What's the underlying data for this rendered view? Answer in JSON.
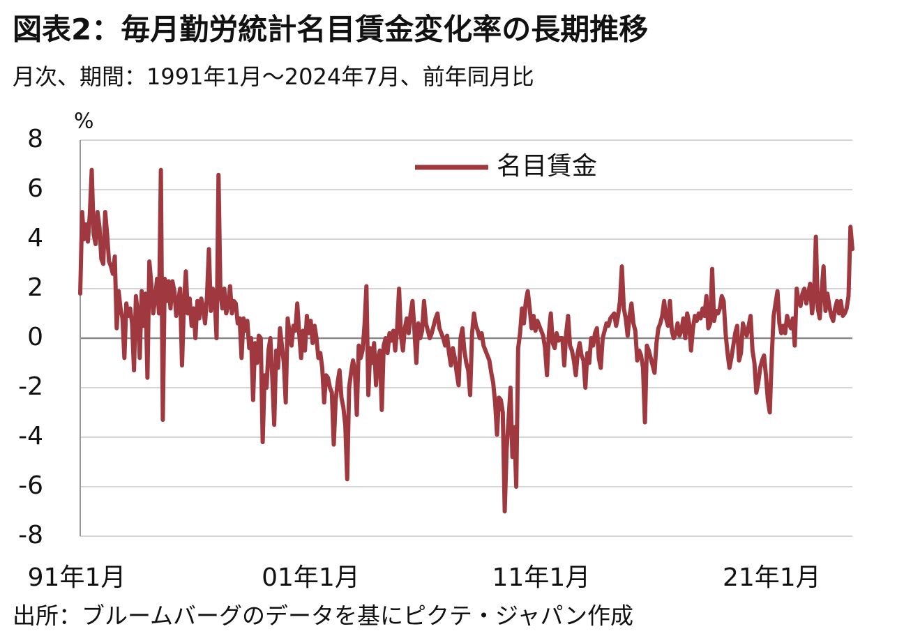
{
  "chart_data": {
    "type": "line",
    "title": "図表2：毎月勤労統計名目賃金変化率の長期推移",
    "subtitle": "月次、期間：1991年1月～2024年7月、前年同月比",
    "y_unit": "%",
    "source": "出所：ブルームバーグのデータを基にピクテ・ジャパン作成",
    "ylim": [
      -8,
      8
    ],
    "yticks": [
      -8,
      -6,
      -4,
      -2,
      0,
      2,
      4,
      6,
      8
    ],
    "grid": true,
    "legend": "upper center",
    "categories": [
      "91年1月",
      null,
      null,
      null,
      null,
      null,
      null,
      null,
      null,
      null,
      null,
      null,
      null,
      null,
      null,
      null,
      null,
      null,
      null,
      null,
      null,
      null,
      null,
      null,
      null,
      null,
      null,
      null,
      null,
      null,
      null,
      null,
      null,
      null,
      null,
      null,
      null,
      null,
      null,
      null,
      null,
      null,
      null,
      null,
      null,
      null,
      null,
      null,
      null,
      null,
      null,
      null,
      null,
      null,
      null,
      null,
      null,
      null,
      null,
      null,
      null,
      null,
      null,
      null,
      null,
      null,
      null,
      null,
      null,
      null,
      null,
      null,
      null,
      null,
      null,
      null,
      null,
      null,
      null,
      null,
      null,
      null,
      null,
      null,
      null,
      null,
      null,
      null,
      null,
      null,
      null,
      null,
      null,
      null,
      null,
      null,
      null,
      null,
      null,
      null,
      null,
      null,
      null,
      null,
      null,
      null,
      null,
      null,
      null,
      null,
      null,
      null,
      null,
      null,
      null,
      null,
      null,
      null,
      null,
      null,
      "01年1月",
      null,
      null,
      null,
      null,
      null,
      null,
      null,
      null,
      null,
      null,
      null,
      null,
      null,
      null,
      null,
      null,
      null,
      null,
      null,
      null,
      null,
      null,
      null,
      null,
      null,
      null,
      null,
      null,
      null,
      null,
      null,
      null,
      null,
      null,
      null,
      null,
      null,
      null,
      null,
      null,
      null,
      null,
      null,
      null,
      null,
      null,
      null,
      null,
      null,
      null,
      null,
      null,
      null,
      null,
      null,
      null,
      null,
      null,
      null,
      null,
      null,
      null,
      null,
      null,
      null,
      null,
      null,
      null,
      null,
      null,
      null,
      null,
      null,
      null,
      null,
      null,
      null,
      null,
      null,
      null,
      null,
      null,
      null,
      null,
      null,
      null,
      null,
      null,
      null,
      null,
      null,
      null,
      null,
      null,
      null,
      null,
      null,
      null,
      null,
      null,
      null,
      null,
      null,
      null,
      null,
      null,
      null,
      null,
      null,
      null,
      null,
      null,
      null,
      null,
      null,
      null,
      null,
      null,
      null,
      "11年1月",
      null,
      null,
      null,
      null,
      null,
      null,
      null,
      null,
      null,
      null,
      null,
      null,
      null,
      null,
      null,
      null,
      null,
      null,
      null,
      null,
      null,
      null,
      null,
      null,
      null,
      null,
      null,
      null,
      null,
      null,
      null,
      null,
      null,
      null,
      null,
      null,
      null,
      null,
      null,
      null,
      null,
      null,
      null,
      null,
      null,
      null,
      null,
      null,
      null,
      null,
      null,
      null,
      null,
      null,
      null,
      null,
      null,
      null,
      null,
      null,
      null,
      null,
      null,
      null,
      null,
      null,
      null,
      null,
      null,
      null,
      null,
      null,
      null,
      null,
      null,
      null,
      null,
      null,
      null,
      null,
      null,
      null,
      null,
      null,
      null,
      null,
      null,
      null,
      null,
      null,
      null,
      null,
      null,
      null,
      null,
      null,
      null,
      null,
      null,
      null,
      null,
      null,
      null,
      null,
      null,
      null,
      null,
      null,
      null,
      null,
      null,
      null,
      null,
      null,
      null,
      null,
      null,
      null,
      null,
      "21年1月",
      null,
      null,
      null,
      null,
      null,
      null,
      null,
      null,
      null,
      null,
      null,
      null,
      null,
      null,
      null,
      null,
      null,
      null,
      null,
      null,
      null,
      null,
      null,
      null,
      null,
      null,
      null,
      null,
      null,
      null,
      null,
      null,
      null,
      null,
      null,
      null,
      null,
      null,
      null,
      null,
      null,
      null
    ],
    "series": [
      {
        "name": "名目賃金",
        "color": "#a0393f",
        "values": [
          1.8,
          5.1,
          4.0,
          4.6,
          3.9,
          5.0,
          6.8,
          4.2,
          3.8,
          5.1,
          4.5,
          3.2,
          3.0,
          5.1,
          4.2,
          3.1,
          2.9,
          2.6,
          3.3,
          0.4,
          1.9,
          1.2,
          0.8,
          -0.8,
          1.4,
          0.9,
          1.2,
          0.6,
          -1.3,
          1.7,
          1.0,
          -0.8,
          1.9,
          0.5,
          1.8,
          -1.6,
          3.1,
          2.2,
          1.0,
          1.6,
          2.4,
          1.0,
          6.8,
          -3.3,
          2.4,
          1.5,
          2.3,
          1.2,
          2.3,
          1.9,
          0.9,
          1.5,
          2.0,
          -1.1,
          1.4,
          2.7,
          1.0,
          1.6,
          0.5,
          1.2,
          0.0,
          1.5,
          0.8,
          1.6,
          1.2,
          0.6,
          1.7,
          3.6,
          1.1,
          2.0,
          1.6,
          0.0,
          6.6,
          1.8,
          1.2,
          2.0,
          1.0,
          1.3,
          2.1,
          1.0,
          1.5,
          1.4,
          0.6,
          0.8,
          -0.8,
          0.8,
          0.3,
          0.7,
          -0.4,
          0.0,
          -2.5,
          -0.2,
          -1.0,
          0.1,
          0.0,
          -4.2,
          -1.5,
          -2.0,
          -0.5,
          0.0,
          -1.6,
          -3.5,
          -0.5,
          -1.2,
          0.4,
          -0.3,
          -1.0,
          -2.6,
          0.8,
          0.2,
          -0.3,
          0.5,
          0.3,
          1.4,
          0.2,
          -0.8,
          0.3,
          -0.5,
          0.9,
          0.2,
          0.7,
          -0.2,
          0.5,
          0.0,
          -0.8,
          -0.6,
          -1.2,
          -2.6,
          -1.5,
          -1.6,
          -2.0,
          -2.2,
          -4.3,
          -2.5,
          -1.8,
          -1.3,
          -2.4,
          -2.8,
          -3.5,
          -5.7,
          -2.0,
          -1.4,
          -0.9,
          -1.3,
          -3.1,
          -0.3,
          -0.8,
          -0.5,
          0.5,
          2.1,
          -2.3,
          -0.4,
          -1.0,
          -0.2,
          -1.9,
          -0.8,
          -0.5,
          -2.9,
          -0.3,
          0.0,
          -0.6,
          0.2,
          -0.1,
          0.3,
          -0.5,
          0.4,
          2.0,
          0.1,
          -0.5,
          0.4,
          0.8,
          0.2,
          1.0,
          1.5,
          0.3,
          -1.0,
          0.6,
          0.0,
          0.3,
          1.5,
          0.6,
          0.3,
          0.0,
          0.2,
          0.5,
          0.8,
          1.0,
          0.4,
          0.2,
          0.0,
          -0.3,
          0.1,
          -0.6,
          -1.1,
          -0.4,
          -0.8,
          -1.4,
          -1.9,
          0.0,
          0.4,
          -0.5,
          -1.0,
          -1.3,
          -2.3,
          0.2,
          1.0,
          0.5,
          0.3,
          0.0,
          0.2,
          -0.3,
          -0.5,
          -0.7,
          -0.9,
          -1.4,
          -1.8,
          -2.6,
          -3.9,
          -2.4,
          -2.5,
          -3.0,
          -7.0,
          -4.5,
          -3.3,
          -2.0,
          -4.8,
          -3.6,
          -6.0,
          -0.4,
          0.2,
          1.2,
          0.6,
          1.5,
          1.9,
          1.2,
          0.4,
          0.9,
          0.3,
          0.7,
          0.5,
          0.3,
          0.1,
          -0.4,
          -1.5,
          0.2,
          1.0,
          -0.2,
          -0.4,
          0.2,
          -0.1,
          0.0,
          0.0,
          -1.1,
          0.2,
          0.9,
          -0.3,
          -0.5,
          -0.9,
          -1.5,
          -0.6,
          -0.2,
          -0.7,
          -0.9,
          -2.0,
          -0.6,
          -1.0,
          0.0,
          -0.3,
          0.2,
          0.4,
          -0.8,
          -1.2,
          0.0,
          0.3,
          0.6,
          0.5,
          0.8,
          0.9,
          1.0,
          0.5,
          0.9,
          1.5,
          2.9,
          1.2,
          0.8,
          0.1,
          0.9,
          1.4,
          0.6,
          0.3,
          -0.9,
          -0.5,
          -0.7,
          -1.2,
          -3.4,
          -0.3,
          -0.5,
          -0.8,
          -1.1,
          -1.4,
          -0.2,
          0.4,
          0.6,
          0.9,
          1.5,
          0.8,
          0.5,
          1.5,
          0.3,
          0.0,
          0.2,
          0.6,
          0.1,
          0.3,
          0.8,
          0.0,
          1.0,
          0.6,
          -0.5,
          0.4,
          0.9,
          0.7,
          1.0,
          0.8,
          1.2,
          0.9,
          1.7,
          0.4,
          0.6,
          2.8,
          0.7,
          1.1,
          1.0,
          1.2,
          1.7,
          1.5,
          0.2,
          -0.6,
          -1.2,
          -0.8,
          -0.3,
          0.2,
          0.5,
          -0.9,
          -0.6,
          0.6,
          0.3,
          0.1,
          0.5,
          0.9,
          -0.5,
          -1.0,
          -2.2,
          -1.8,
          -1.2,
          -0.9,
          -0.7,
          -1.5,
          -2.5,
          -3.0,
          -0.8,
          0.9,
          1.4,
          1.9,
          0.6,
          0.2,
          0.5,
          0.2,
          0.9,
          0.6,
          0.4,
          0.8,
          -0.3,
          2.0,
          1.5,
          1.3,
          1.8,
          2.0,
          1.4,
          1.8,
          2.2,
          1.0,
          1.6,
          4.1,
          1.2,
          0.8,
          1.9,
          2.9,
          1.1,
          1.8,
          1.3,
          0.9,
          0.7,
          1.2,
          1.5,
          1.0,
          1.5,
          0.9,
          1.0,
          1.2,
          1.7,
          4.5,
          3.6
        ]
      }
    ]
  }
}
